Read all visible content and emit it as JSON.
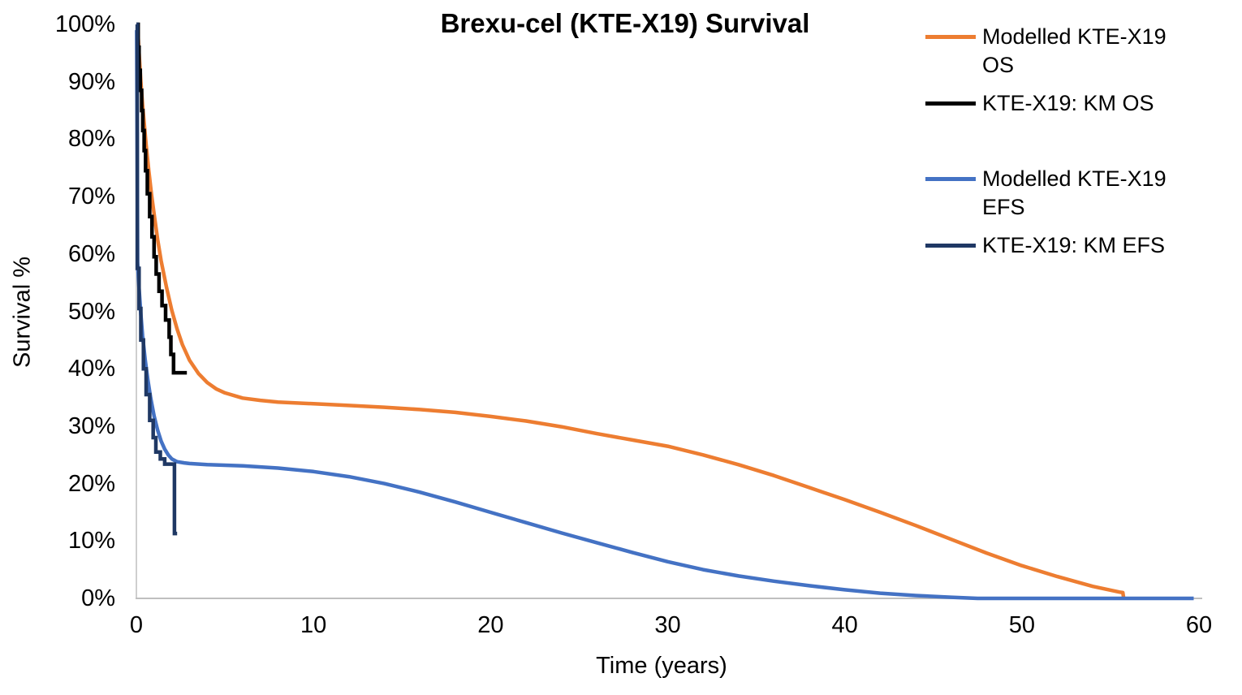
{
  "chart_data": {
    "type": "line",
    "title": "Brexu-cel (KTE-X19) Survival",
    "xlabel": "Time (years)",
    "ylabel": "Survival %",
    "xlim": [
      0,
      60
    ],
    "ylim": [
      0,
      100
    ],
    "grid": "off",
    "legend_position": "right",
    "axis_color": "#BFBFBF",
    "background_color": "#FFFFFF",
    "x_ticks": [
      {
        "value": 0,
        "label": "0"
      },
      {
        "value": 10,
        "label": "10"
      },
      {
        "value": 20,
        "label": "20"
      },
      {
        "value": 30,
        "label": "30"
      },
      {
        "value": 40,
        "label": "40"
      },
      {
        "value": 50,
        "label": "50"
      },
      {
        "value": 60,
        "label": "60"
      }
    ],
    "y_ticks": [
      {
        "value": 0,
        "label": "0%"
      },
      {
        "value": 10,
        "label": "10%"
      },
      {
        "value": 20,
        "label": "20%"
      },
      {
        "value": 30,
        "label": "30%"
      },
      {
        "value": 40,
        "label": "40%"
      },
      {
        "value": 50,
        "label": "50%"
      },
      {
        "value": 60,
        "label": "60%"
      },
      {
        "value": 70,
        "label": "70%"
      },
      {
        "value": 80,
        "label": "80%"
      },
      {
        "value": 90,
        "label": "90%"
      },
      {
        "value": 100,
        "label": "100%"
      }
    ],
    "series": [
      {
        "name": "Modelled KTE-X19 OS",
        "color": "#ED7D31",
        "style": "smooth",
        "points": [
          [
            0.08,
            99
          ],
          [
            0.15,
            95
          ],
          [
            0.25,
            90
          ],
          [
            0.35,
            86
          ],
          [
            0.45,
            82.5
          ],
          [
            0.55,
            79
          ],
          [
            0.7,
            74.5
          ],
          [
            0.85,
            70.5
          ],
          [
            1.0,
            67
          ],
          [
            1.2,
            62.5
          ],
          [
            1.4,
            58.8
          ],
          [
            1.7,
            54.2
          ],
          [
            2.0,
            50.2
          ],
          [
            2.3,
            46.9
          ],
          [
            2.6,
            44.2
          ],
          [
            3.0,
            41.5
          ],
          [
            3.5,
            39.2
          ],
          [
            4.0,
            37.6
          ],
          [
            4.5,
            36.5
          ],
          [
            5.0,
            35.8
          ],
          [
            6.0,
            34.9
          ],
          [
            7.0,
            34.5
          ],
          [
            8.0,
            34.2
          ],
          [
            10,
            33.9
          ],
          [
            12,
            33.6
          ],
          [
            14,
            33.3
          ],
          [
            16,
            32.9
          ],
          [
            18,
            32.4
          ],
          [
            20,
            31.7
          ],
          [
            22,
            30.9
          ],
          [
            24,
            29.9
          ],
          [
            26,
            28.7
          ],
          [
            28,
            27.6
          ],
          [
            30,
            26.5
          ],
          [
            32,
            25.0
          ],
          [
            34,
            23.3
          ],
          [
            36,
            21.4
          ],
          [
            38,
            19.3
          ],
          [
            40,
            17.2
          ],
          [
            42,
            15.0
          ],
          [
            44,
            12.7
          ],
          [
            46,
            10.3
          ],
          [
            48,
            7.9
          ],
          [
            50,
            5.7
          ],
          [
            52,
            3.8
          ],
          [
            54,
            2.1
          ],
          [
            55.5,
            1.1
          ],
          [
            55.7,
            1.0
          ],
          [
            55.75,
            0
          ]
        ]
      },
      {
        "name": "KTE-X19: KM OS",
        "color": "#000000",
        "style": "step",
        "points": [
          [
            0,
            100
          ],
          [
            0.1,
            100
          ],
          [
            0.1,
            96
          ],
          [
            0.15,
            96
          ],
          [
            0.15,
            92
          ],
          [
            0.22,
            92
          ],
          [
            0.22,
            88.5
          ],
          [
            0.3,
            88.5
          ],
          [
            0.3,
            85
          ],
          [
            0.36,
            85
          ],
          [
            0.36,
            81.5
          ],
          [
            0.44,
            81.5
          ],
          [
            0.44,
            78
          ],
          [
            0.52,
            78
          ],
          [
            0.52,
            74.5
          ],
          [
            0.62,
            74.5
          ],
          [
            0.62,
            70.5
          ],
          [
            0.75,
            70.5
          ],
          [
            0.75,
            66.5
          ],
          [
            0.88,
            66.5
          ],
          [
            0.88,
            63
          ],
          [
            1.0,
            63
          ],
          [
            1.0,
            59.5
          ],
          [
            1.12,
            59.5
          ],
          [
            1.12,
            56.5
          ],
          [
            1.28,
            56.5
          ],
          [
            1.28,
            53.5
          ],
          [
            1.45,
            53.5
          ],
          [
            1.45,
            51
          ],
          [
            1.65,
            51
          ],
          [
            1.65,
            48.5
          ],
          [
            1.85,
            48.5
          ],
          [
            1.85,
            45.5
          ],
          [
            1.95,
            45.5
          ],
          [
            1.95,
            42.5
          ],
          [
            2.1,
            42.5
          ],
          [
            2.1,
            39.3
          ],
          [
            2.85,
            39.3
          ]
        ]
      },
      {
        "name": "Modelled KTE-X19 EFS",
        "color": "#4472C4",
        "style": "smooth",
        "points": [
          [
            0.02,
            99
          ],
          [
            0.05,
            75
          ],
          [
            0.07,
            58.5
          ],
          [
            0.15,
            54
          ],
          [
            0.25,
            49.5
          ],
          [
            0.35,
            45.8
          ],
          [
            0.5,
            41.5
          ],
          [
            0.65,
            38
          ],
          [
            0.8,
            35
          ],
          [
            1.0,
            31.8
          ],
          [
            1.2,
            29.3
          ],
          [
            1.4,
            27.4
          ],
          [
            1.6,
            26
          ],
          [
            1.8,
            25
          ],
          [
            2.0,
            24.3
          ],
          [
            2.3,
            23.8
          ],
          [
            2.7,
            23.6
          ],
          [
            3.0,
            23.5
          ],
          [
            4,
            23.3
          ],
          [
            5,
            23.2
          ],
          [
            6,
            23.1
          ],
          [
            8,
            22.7
          ],
          [
            10,
            22.1
          ],
          [
            12,
            21.2
          ],
          [
            14,
            20.0
          ],
          [
            16,
            18.5
          ],
          [
            18,
            16.8
          ],
          [
            20,
            15.0
          ],
          [
            22,
            13.2
          ],
          [
            24,
            11.4
          ],
          [
            26,
            9.7
          ],
          [
            28,
            8.0
          ],
          [
            30,
            6.4
          ],
          [
            32,
            5.0
          ],
          [
            34,
            3.9
          ],
          [
            36,
            3.0
          ],
          [
            38,
            2.2
          ],
          [
            40,
            1.5
          ],
          [
            42,
            0.9
          ],
          [
            44,
            0.5
          ],
          [
            46,
            0.2
          ],
          [
            47.5,
            0
          ],
          [
            59.7,
            0
          ]
        ]
      },
      {
        "name": "KTE-X19: KM EFS",
        "color": "#1F3864",
        "style": "step",
        "points": [
          [
            0,
            100
          ],
          [
            0.05,
            100
          ],
          [
            0.05,
            57.5
          ],
          [
            0.15,
            57.5
          ],
          [
            0.15,
            50.5
          ],
          [
            0.25,
            50.5
          ],
          [
            0.25,
            45
          ],
          [
            0.4,
            45
          ],
          [
            0.4,
            40
          ],
          [
            0.55,
            40
          ],
          [
            0.55,
            35.5
          ],
          [
            0.75,
            35.5
          ],
          [
            0.75,
            31
          ],
          [
            0.95,
            31
          ],
          [
            0.95,
            28
          ],
          [
            1.1,
            28
          ],
          [
            1.1,
            25.5
          ],
          [
            1.35,
            25.5
          ],
          [
            1.35,
            24.3
          ],
          [
            1.6,
            24.3
          ],
          [
            1.6,
            23.4
          ],
          [
            2.15,
            23.4
          ],
          [
            2.15,
            11.3
          ],
          [
            2.3,
            11.3
          ]
        ]
      }
    ]
  }
}
